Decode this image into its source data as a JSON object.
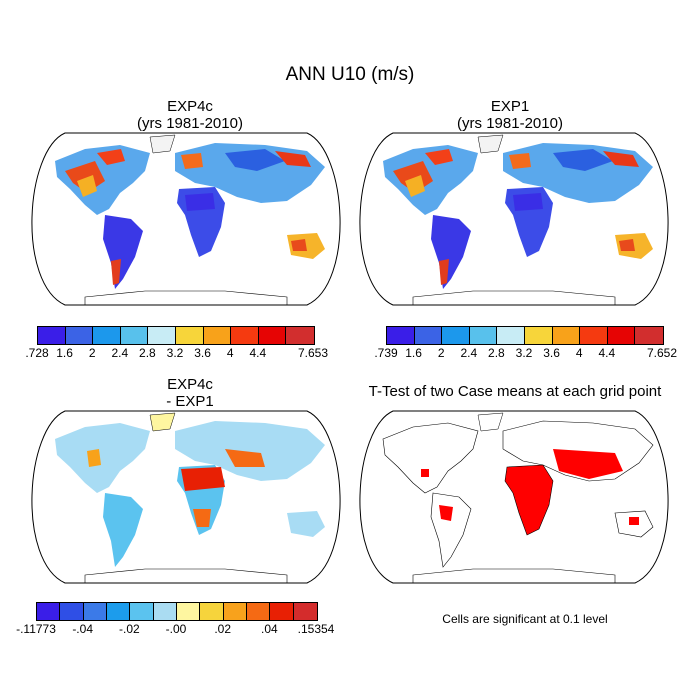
{
  "title": "ANN U10 (m/s)",
  "panels": [
    {
      "line1": "EXP4c",
      "line2": "(yrs 1981-2010)"
    },
    {
      "line1": "EXP1",
      "line2": "(yrs 1981-2010)"
    },
    {
      "line1": "EXP4c",
      "line2": "- EXP1"
    },
    {
      "line1": "T-Test of two Case means at each grid point"
    }
  ],
  "colorbars": {
    "absolute_colors": [
      "#3a1ee8",
      "#3b63e6",
      "#1c98ec",
      "#58c1ec",
      "#c8ecf5",
      "#f7d53a",
      "#f8a21a",
      "#f53a10",
      "#e60404",
      "#d22e2e"
    ],
    "exp4c_ticks": [
      ".728",
      "1.6",
      "2",
      "2.4",
      "2.8",
      "3.2",
      "3.6",
      "4",
      "4.4",
      "7.653"
    ],
    "exp1_ticks": [
      ".739",
      "1.6",
      "2",
      "2.4",
      "2.8",
      "3.2",
      "3.6",
      "4",
      "4.4",
      "7.652"
    ],
    "diff_colors": [
      "#3a1ee8",
      "#2f4fe6",
      "#3b7ae8",
      "#1c9cec",
      "#5bc3ef",
      "#aadcf2",
      "#fef6a0",
      "#f6d43c",
      "#f8a21c",
      "#f56a14",
      "#e82004",
      "#d42c2c"
    ],
    "diff_ticks": [
      "-.11773",
      "-.04",
      "-.02",
      "-.00",
      ".02",
      ".04",
      ".15354"
    ]
  },
  "significance_note": "Cells are significant at 0.1 level",
  "colors": {
    "land_absolute": "#5aa8ec",
    "land_diff": "#a8dcf4",
    "significant": "#ff0000"
  }
}
